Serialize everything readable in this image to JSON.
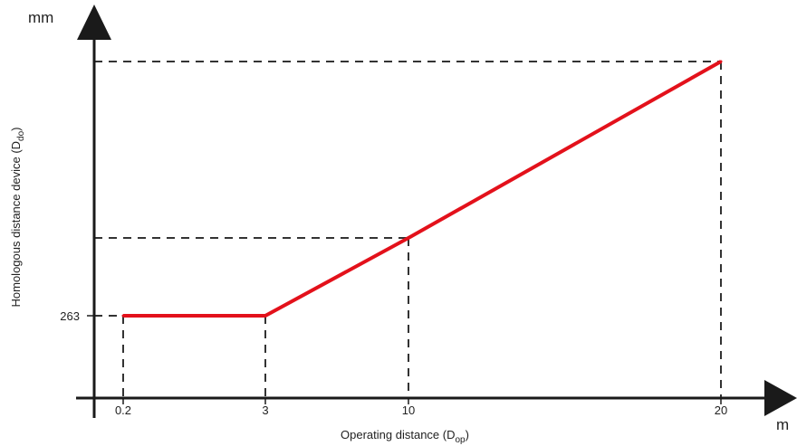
{
  "chart_data": {
    "type": "line",
    "x_unit": "m",
    "y_unit": "mm",
    "xlabel_main": "Operating distance (D",
    "xlabel_sub": "op",
    "xlabel_close": ")",
    "ylabel_main": "Homologous distance device (D",
    "ylabel_sub": "do",
    "ylabel_close": ")",
    "x_ticks": [
      "0.2",
      "3",
      "10",
      "20"
    ],
    "y_ticks": [
      "263"
    ],
    "series": [
      {
        "color": "#e3111b",
        "points": [
          {
            "x": 0.2,
            "y": 263
          },
          {
            "x": 3,
            "y": 263
          },
          {
            "x": 10,
            "y": 526
          },
          {
            "x": 20,
            "y": 1052
          }
        ]
      }
    ],
    "guides": [
      {
        "x": 0.2,
        "y": 263
      },
      {
        "x": 3,
        "y": 263
      },
      {
        "x": 10,
        "y": 526
      },
      {
        "x": 20,
        "y": 1052
      }
    ],
    "grid": false,
    "axis_color": "#1a1a1a",
    "guide_color": "#333333"
  }
}
